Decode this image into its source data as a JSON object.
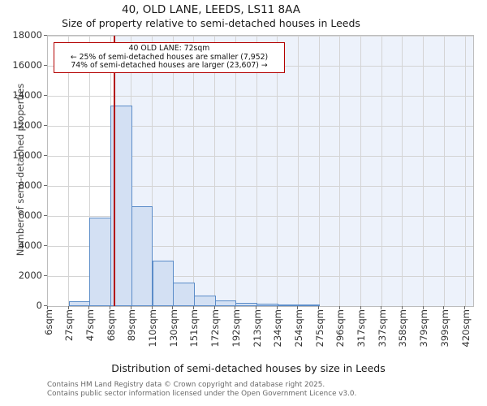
{
  "title": "40, OLD LANE, LEEDS, LS11 8AA",
  "subtitle": "Size of property relative to semi-detached houses in Leeds",
  "annotation": {
    "line1": "40 OLD LANE: 72sqm",
    "line2": "← 25% of semi-detached houses are smaller (7,952)",
    "line3": "74% of semi-detached houses are larger (23,607) →"
  },
  "footer": {
    "line1": "Contains HM Land Registry data © Crown copyright and database right 2025.",
    "line2": "Contains public sector information licensed under the Open Government Licence v3.0."
  },
  "colors": {
    "bar_fill": "#d3e0f3",
    "bar_edge": "#5b8cc8",
    "marker_red": "#b30000",
    "shade_region": "#edf2fb",
    "gridline": "#d4d4d4",
    "spine": "#bdbdbd"
  },
  "chart_data": {
    "type": "bar",
    "title": "40, OLD LANE, LEEDS, LS11 8AA",
    "subtitle": "Size of property relative to semi-detached houses in Leeds",
    "xlabel": "Distribution of semi-detached houses by size in Leeds",
    "ylabel": "Number of semi-detached properties",
    "x_tick_labels": [
      "6sqm",
      "27sqm",
      "47sqm",
      "68sqm",
      "89sqm",
      "110sqm",
      "130sqm",
      "151sqm",
      "172sqm",
      "192sqm",
      "213sqm",
      "234sqm",
      "254sqm",
      "275sqm",
      "296sqm",
      "317sqm",
      "337sqm",
      "358sqm",
      "379sqm",
      "399sqm",
      "420sqm"
    ],
    "y_ticks": [
      0,
      2000,
      4000,
      6000,
      8000,
      10000,
      12000,
      14000,
      16000,
      18000
    ],
    "ylim": [
      0,
      18000
    ],
    "grid": true,
    "bin_start_sqm": 6,
    "bin_width_sqm": 20.7,
    "values": [
      0,
      320,
      5900,
      13350,
      6650,
      3050,
      1550,
      720,
      400,
      220,
      150,
      110,
      60,
      0,
      0,
      0,
      0,
      0,
      0,
      0
    ],
    "marker_value_sqm": 72,
    "marker_label": "40 OLD LANE: 72sqm",
    "pct_smaller": 25,
    "count_smaller": 7952,
    "pct_larger": 74,
    "count_larger": 23607
  }
}
